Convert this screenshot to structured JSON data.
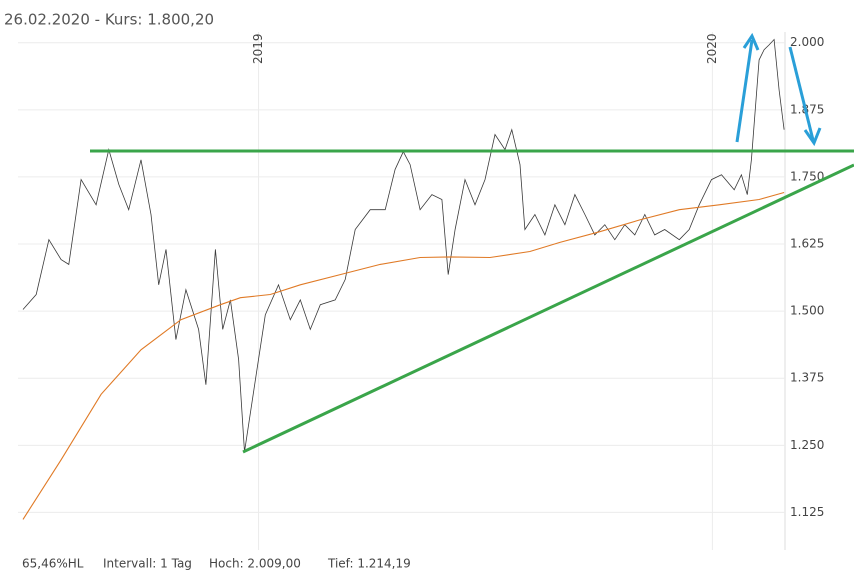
{
  "chart_data": {
    "type": "line",
    "title": "26.02.2020  -  Kurs: 1.800,20",
    "xlim": [
      2018.47,
      2020.16
    ],
    "xticks": [
      2019,
      2020
    ],
    "ylim": [
      1.055,
      2.02
    ],
    "yticks": [
      {
        "value": 1.125,
        "label": "1.125"
      },
      {
        "value": 1.25,
        "label": "1.250"
      },
      {
        "value": 1.375,
        "label": "1.375"
      },
      {
        "value": 1.5,
        "label": "1.500"
      },
      {
        "value": 1.625,
        "label": "1.625"
      },
      {
        "value": 1.75,
        "label": "1.750"
      },
      {
        "value": 1.875,
        "label": "1.875"
      },
      {
        "value": 2.0,
        "label": "2.000"
      }
    ],
    "grid": true,
    "series": [
      {
        "color": "#3a3a3a",
        "x": [
          2018.481,
          2018.51,
          2018.538,
          2018.565,
          2018.582,
          2018.609,
          2018.642,
          2018.67,
          2018.692,
          2018.714,
          2018.741,
          2018.763,
          2018.78,
          2018.796,
          2018.818,
          2018.84,
          2018.868,
          2018.884,
          2018.905,
          2018.921,
          2018.938,
          2018.956,
          2018.969,
          2018.993,
          2019.015,
          2019.044,
          2019.07,
          2019.092,
          2019.114,
          2019.136,
          2019.169,
          2019.191,
          2019.213,
          2019.246,
          2019.279,
          2019.301,
          2019.319,
          2019.334,
          2019.356,
          2019.382,
          2019.404,
          2019.418,
          2019.433,
          2019.455,
          2019.477,
          2019.499,
          2019.521,
          2019.543,
          2019.558,
          2019.576,
          2019.587,
          2019.609,
          2019.631,
          2019.653,
          2019.675,
          2019.697,
          2019.719,
          2019.741,
          2019.763,
          2019.785,
          2019.807,
          2019.829,
          2019.851,
          2019.873,
          2019.895,
          2019.927,
          2019.949,
          2019.971,
          2019.998,
          2020.02,
          2020.048,
          2020.064,
          2020.077,
          2020.086,
          2020.103,
          2020.114,
          2020.125,
          2020.136,
          2020.147,
          2020.158
        ],
        "values": [
          1.503,
          1.531,
          1.633,
          1.596,
          1.587,
          1.745,
          1.698,
          1.801,
          1.736,
          1.689,
          1.782,
          1.68,
          1.549,
          1.615,
          1.447,
          1.54,
          1.466,
          1.363,
          1.615,
          1.466,
          1.521,
          1.41,
          1.238,
          1.372,
          1.493,
          1.549,
          1.484,
          1.521,
          1.466,
          1.512,
          1.521,
          1.559,
          1.652,
          1.689,
          1.689,
          1.764,
          1.797,
          1.773,
          1.689,
          1.717,
          1.708,
          1.568,
          1.652,
          1.745,
          1.698,
          1.745,
          1.829,
          1.801,
          1.838,
          1.773,
          1.652,
          1.68,
          1.642,
          1.698,
          1.661,
          1.717,
          1.68,
          1.642,
          1.661,
          1.633,
          1.661,
          1.642,
          1.68,
          1.642,
          1.652,
          1.633,
          1.652,
          1.698,
          1.745,
          1.754,
          1.726,
          1.754,
          1.717,
          1.782,
          1.968,
          1.987,
          1.996,
          2.006,
          1.912,
          1.838
        ]
      },
      {
        "color": "#e07a26",
        "x": [
          2018.481,
          2018.565,
          2018.653,
          2018.741,
          2018.829,
          2018.916,
          2018.96,
          2019.026,
          2019.092,
          2019.18,
          2019.268,
          2019.356,
          2019.422,
          2019.51,
          2019.598,
          2019.664,
          2019.752,
          2019.84,
          2019.927,
          2020.015,
          2020.103,
          2020.158
        ],
        "values": [
          1.112,
          1.223,
          1.345,
          1.428,
          1.484,
          1.512,
          1.525,
          1.531,
          1.549,
          1.568,
          1.587,
          1.6,
          1.601,
          1.6,
          1.611,
          1.628,
          1.648,
          1.67,
          1.689,
          1.698,
          1.708,
          1.721
        ]
      }
    ],
    "footer": [
      "65,46%HL",
      "Intervall: 1 Tag",
      "Hoch:  2.009,00",
      "Tief:  1.214,19"
    ]
  }
}
